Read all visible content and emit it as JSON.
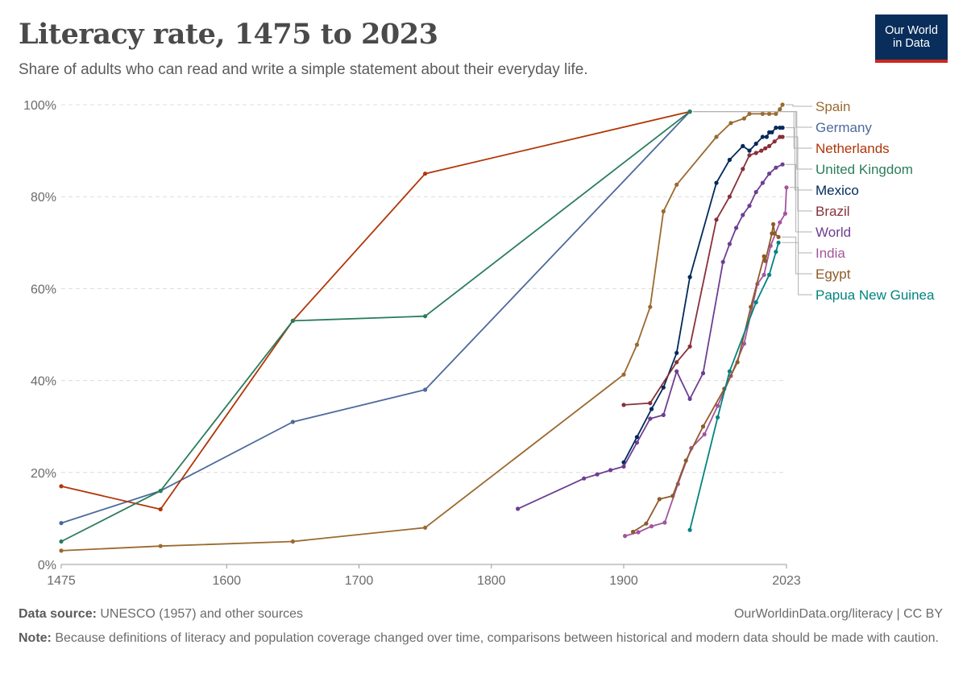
{
  "header": {
    "title": "Literacy rate, 1475 to 2023",
    "subtitle": "Share of adults who can read and write a simple statement about their everyday life."
  },
  "logo": {
    "line1": "Our World",
    "line2": "in Data",
    "bg_color": "#0a2e5c",
    "accent_color": "#ce261e"
  },
  "footer": {
    "source_label": "Data source:",
    "source_text": " UNESCO (1957) and other sources",
    "credit": "OurWorldinData.org/literacy | CC BY",
    "note_label": "Note:",
    "note_text": " Because definitions of literacy and population coverage changed over time, comparisons between historical and modern data should be made with caution."
  },
  "chart_data": {
    "type": "line",
    "title": "Literacy rate, 1475 to 2023",
    "xlabel": "",
    "ylabel": "",
    "xlim": [
      1475,
      2023
    ],
    "ylim": [
      0,
      100
    ],
    "x_ticks": [
      1475,
      1600,
      1700,
      1800,
      1900,
      2023
    ],
    "y_ticks": [
      0,
      20,
      40,
      60,
      80,
      100
    ],
    "y_tick_labels": [
      "0%",
      "20%",
      "40%",
      "60%",
      "80%",
      "100%"
    ],
    "grid": "horizontal dashed",
    "legend": "right, labels at line ends",
    "series": [
      {
        "name": "Spain",
        "color": "#9a6a2f",
        "points": [
          [
            1475,
            3
          ],
          [
            1550,
            4
          ],
          [
            1650,
            5
          ],
          [
            1750,
            8
          ],
          [
            1900,
            41.3
          ],
          [
            1910,
            47.8
          ],
          [
            1920,
            56
          ],
          [
            1930,
            76.8
          ],
          [
            1940,
            82.6
          ],
          [
            1970,
            93
          ],
          [
            1981,
            96
          ],
          [
            1991,
            97
          ],
          [
            1995,
            98
          ],
          [
            2005,
            98
          ],
          [
            2010,
            98
          ],
          [
            2015,
            98
          ],
          [
            2018,
            99
          ],
          [
            2020,
            100
          ]
        ]
      },
      {
        "name": "Germany",
        "color": "#4c6a9c",
        "points": [
          [
            1475,
            9
          ],
          [
            1550,
            16
          ],
          [
            1650,
            31
          ],
          [
            1750,
            38
          ],
          [
            1950,
            98.5
          ]
        ]
      },
      {
        "name": "Netherlands",
        "color": "#b13507",
        "points": [
          [
            1475,
            17
          ],
          [
            1550,
            12
          ],
          [
            1650,
            53
          ],
          [
            1750,
            85
          ],
          [
            1950,
            98.5
          ]
        ]
      },
      {
        "name": "United Kingdom",
        "color": "#2a7d5b",
        "points": [
          [
            1475,
            5
          ],
          [
            1550,
            16
          ],
          [
            1650,
            53
          ],
          [
            1750,
            54
          ],
          [
            1950,
            98.5
          ]
        ]
      },
      {
        "name": "Mexico",
        "color": "#00295b",
        "points": [
          [
            1900,
            22.2
          ],
          [
            1910,
            27.7
          ],
          [
            1921,
            33.8
          ],
          [
            1930,
            38.5
          ],
          [
            1940,
            46
          ],
          [
            1950,
            62.5
          ],
          [
            1970,
            83
          ],
          [
            1980,
            88
          ],
          [
            1990,
            91
          ],
          [
            1995,
            90
          ],
          [
            2000,
            91.5
          ],
          [
            2005,
            93
          ],
          [
            2008,
            93
          ],
          [
            2010,
            94
          ],
          [
            2012,
            94
          ],
          [
            2015,
            95
          ],
          [
            2018,
            95
          ],
          [
            2020,
            95
          ]
        ]
      },
      {
        "name": "Brazil",
        "color": "#883039",
        "points": [
          [
            1900,
            34.7
          ],
          [
            1920,
            35.1
          ],
          [
            1940,
            44
          ],
          [
            1950,
            47.4
          ],
          [
            1970,
            75
          ],
          [
            1980,
            80
          ],
          [
            1990,
            86
          ],
          [
            1995,
            89
          ],
          [
            2000,
            89.5
          ],
          [
            2004,
            90
          ],
          [
            2007,
            90.5
          ],
          [
            2010,
            91
          ],
          [
            2014,
            92
          ],
          [
            2018,
            93
          ],
          [
            2020,
            93
          ]
        ]
      },
      {
        "name": "World",
        "color": "#6d3e91",
        "points": [
          [
            1820,
            12.1
          ],
          [
            1870,
            18.7
          ],
          [
            1880,
            19.6
          ],
          [
            1890,
            20.5
          ],
          [
            1900,
            21.3
          ],
          [
            1910,
            26.5
          ],
          [
            1920,
            31.7
          ],
          [
            1930,
            32.5
          ],
          [
            1940,
            42
          ],
          [
            1950,
            36
          ],
          [
            1960,
            41.6
          ],
          [
            1975,
            65.8
          ],
          [
            1980,
            69.7
          ],
          [
            1985,
            73.2
          ],
          [
            1990,
            76
          ],
          [
            1995,
            78
          ],
          [
            2000,
            81
          ],
          [
            2005,
            83
          ],
          [
            2010,
            85
          ],
          [
            2015,
            86.3
          ],
          [
            2020,
            87
          ]
        ]
      },
      {
        "name": "India",
        "color": "#a2559c",
        "points": [
          [
            1901,
            6.2
          ],
          [
            1911,
            7
          ],
          [
            1921,
            8.3
          ],
          [
            1931,
            9.1
          ],
          [
            1941,
            17.5
          ],
          [
            1951,
            25.3
          ],
          [
            1961,
            28.3
          ],
          [
            1971,
            34.5
          ],
          [
            1981,
            41
          ],
          [
            1991,
            48
          ],
          [
            2001,
            61
          ],
          [
            2006,
            63
          ],
          [
            2011,
            69.3
          ],
          [
            2018,
            74.4
          ],
          [
            2022,
            76.3
          ],
          [
            2023,
            82
          ]
        ]
      },
      {
        "name": "Egypt",
        "color": "#8f5a28",
        "points": [
          [
            1907,
            7.1
          ],
          [
            1917,
            8.9
          ],
          [
            1927,
            14.2
          ],
          [
            1937,
            14.9
          ],
          [
            1947,
            22.6
          ],
          [
            1960,
            30
          ],
          [
            1976,
            38.2
          ],
          [
            1986,
            44
          ],
          [
            1996,
            56
          ],
          [
            2006,
            67
          ],
          [
            2007,
            66
          ],
          [
            2012,
            72
          ],
          [
            2013,
            74
          ],
          [
            2014,
            72
          ],
          [
            2017,
            71.2
          ]
        ]
      },
      {
        "name": "Papua New Guinea",
        "color": "#00847e",
        "points": [
          [
            1950,
            7.5
          ],
          [
            1971,
            32
          ],
          [
            1980,
            42
          ],
          [
            2000,
            57
          ],
          [
            2010,
            63
          ],
          [
            2015,
            68
          ],
          [
            2017,
            70
          ]
        ]
      }
    ]
  }
}
